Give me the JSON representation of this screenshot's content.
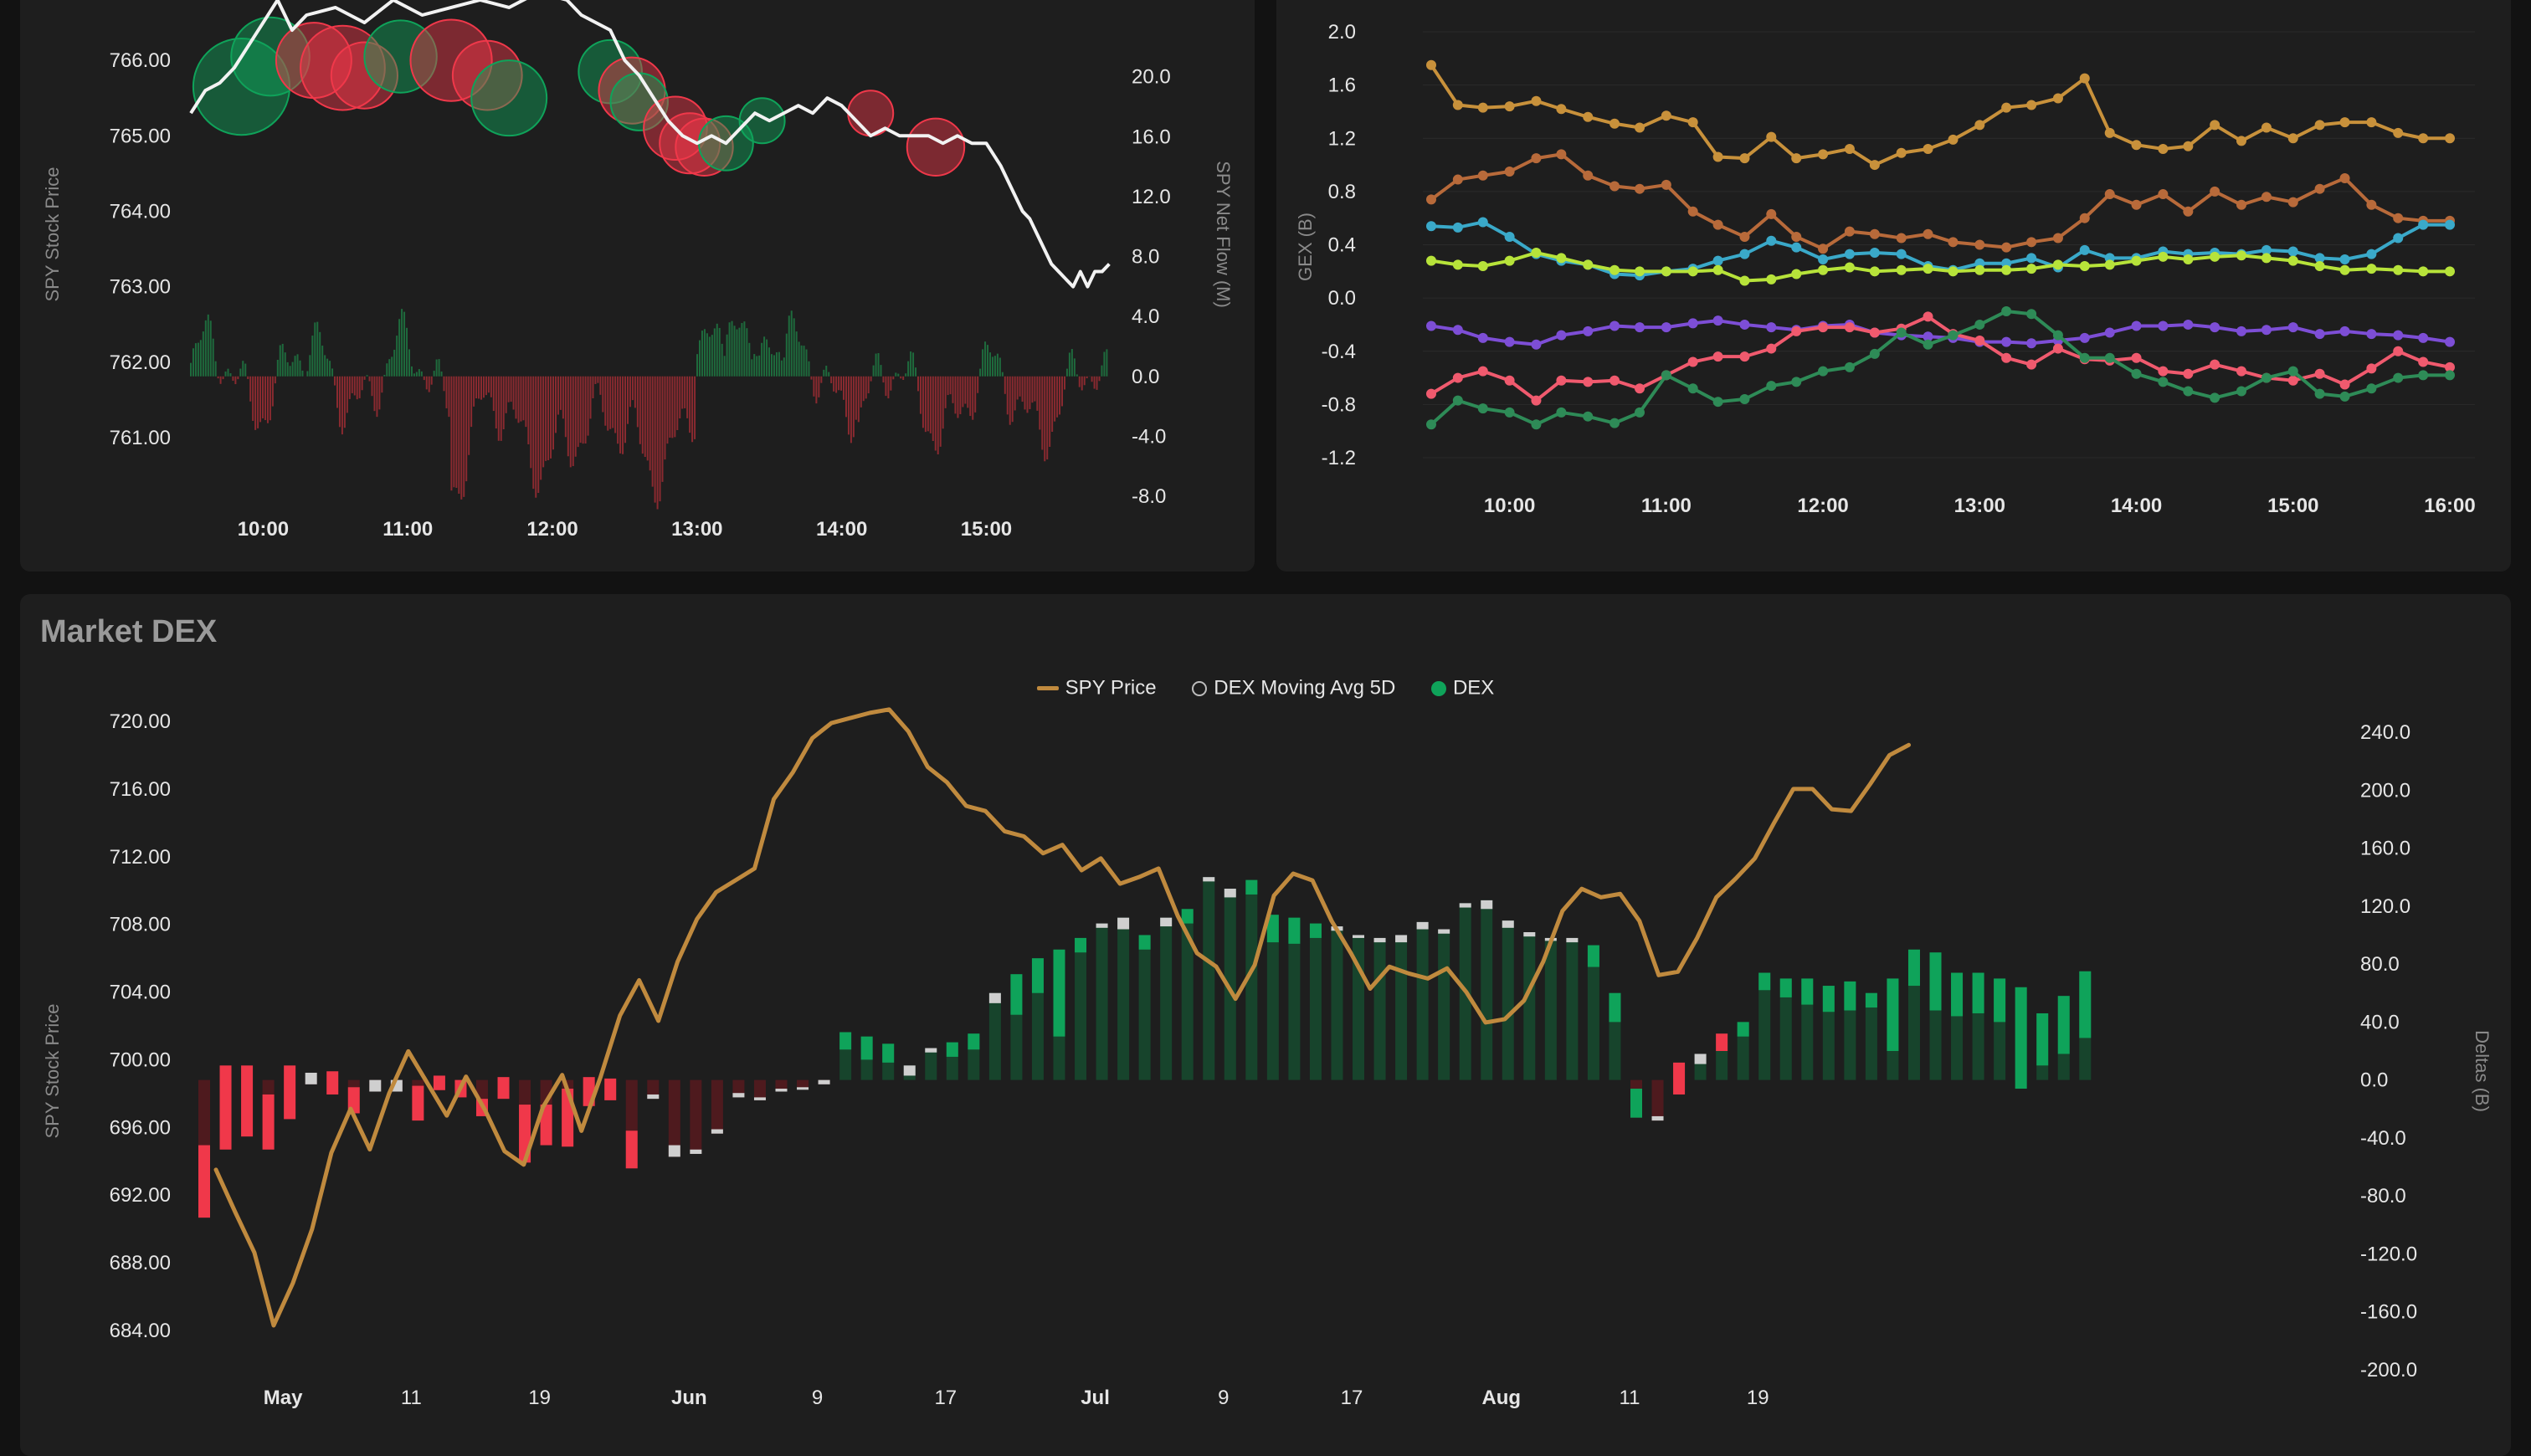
{
  "panels": {
    "dex_title": "Market DEX",
    "legend": {
      "price": "SPY Price",
      "avg": "DEX Moving Avg 5D",
      "dex": "DEX"
    }
  },
  "colors": {
    "bg": "#121212",
    "panel": "#1e1e1e",
    "grid": "#2b2b2b",
    "text": "#e6e6e6",
    "muted": "#8a8a8a",
    "green": "#0fa35a",
    "red": "#f0384a",
    "gray": "#cfcfcf",
    "dark_green": "#17442c",
    "dark_red": "#4e1a1e",
    "gold": "#c08a3e",
    "white_line": "#f2f2f2"
  },
  "chart_data": [
    {
      "type": "line",
      "id": "flow",
      "ylabel": "SPY Stock Price",
      "y2label": "SPY Net Flow (M)",
      "y_ticks": [
        "766.00",
        "765.00",
        "764.00",
        "763.00",
        "762.00",
        "761.00"
      ],
      "y2_ticks": [
        "20.0",
        "16.0",
        "12.0",
        "8.0",
        "4.0",
        "0.0",
        "-4.0",
        "-8.0"
      ],
      "x_ticks": [
        "10:00",
        "11:00",
        "12:00",
        "13:00",
        "14:00",
        "15:00"
      ],
      "ylim": [
        760.5,
        766.6
      ],
      "y2lim": [
        -8.0,
        23.0
      ],
      "price_series": {
        "x": [
          9.5,
          9.6,
          9.7,
          9.8,
          9.9,
          10.0,
          10.1,
          10.2,
          10.3,
          10.5,
          10.7,
          10.9,
          11.1,
          11.3,
          11.5,
          11.7,
          11.9,
          12.1,
          12.2,
          12.4,
          12.5,
          12.6,
          12.7,
          12.8,
          12.9,
          13.0,
          13.1,
          13.2,
          13.3,
          13.4,
          13.5,
          13.6,
          13.7,
          13.8,
          13.9,
          14.0,
          14.1,
          14.2,
          14.3,
          14.4,
          14.5,
          14.6,
          14.7,
          14.8,
          14.9,
          15.0,
          15.1,
          15.2,
          15.25,
          15.3,
          15.35,
          15.4,
          15.45,
          15.5,
          15.55,
          15.6,
          15.65,
          15.7,
          15.75,
          15.8,
          15.85
        ],
        "y": [
          765.3,
          765.6,
          765.7,
          765.9,
          766.2,
          766.5,
          766.8,
          766.4,
          766.6,
          766.7,
          766.5,
          766.8,
          766.6,
          766.7,
          766.8,
          766.7,
          766.9,
          766.8,
          766.6,
          766.4,
          766.0,
          765.8,
          765.5,
          765.2,
          765.0,
          764.9,
          765.0,
          764.9,
          765.1,
          765.3,
          765.2,
          765.3,
          765.4,
          765.3,
          765.5,
          765.4,
          765.2,
          765.0,
          765.1,
          765.0,
          765.0,
          765.0,
          764.9,
          765.0,
          764.9,
          764.9,
          764.6,
          764.2,
          764.0,
          763.9,
          763.7,
          763.5,
          763.3,
          763.2,
          763.1,
          763.0,
          763.2,
          763.0,
          763.2,
          763.2,
          763.3
        ]
      },
      "flow_bubbles": [
        {
          "x": 9.85,
          "y": 765.65,
          "r": 3.2,
          "c": "green"
        },
        {
          "x": 10.05,
          "y": 766.05,
          "r": 2.6,
          "c": "green"
        },
        {
          "x": 10.35,
          "y": 766.0,
          "r": 2.5,
          "c": "red"
        },
        {
          "x": 10.55,
          "y": 765.9,
          "r": 2.8,
          "c": "red"
        },
        {
          "x": 10.7,
          "y": 765.8,
          "r": 2.2,
          "c": "red"
        },
        {
          "x": 10.95,
          "y": 766.05,
          "r": 2.4,
          "c": "green"
        },
        {
          "x": 11.3,
          "y": 766.0,
          "r": 2.7,
          "c": "red"
        },
        {
          "x": 11.55,
          "y": 765.8,
          "r": 2.3,
          "c": "red"
        },
        {
          "x": 11.7,
          "y": 765.5,
          "r": 2.5,
          "c": "green"
        },
        {
          "x": 12.4,
          "y": 765.85,
          "r": 2.1,
          "c": "green"
        },
        {
          "x": 12.55,
          "y": 765.6,
          "r": 2.2,
          "c": "red"
        },
        {
          "x": 12.6,
          "y": 765.45,
          "r": 1.9,
          "c": "green"
        },
        {
          "x": 12.85,
          "y": 765.1,
          "r": 2.1,
          "c": "red"
        },
        {
          "x": 12.95,
          "y": 764.9,
          "r": 2.0,
          "c": "red"
        },
        {
          "x": 13.05,
          "y": 764.85,
          "r": 1.9,
          "c": "red"
        },
        {
          "x": 13.2,
          "y": 764.9,
          "r": 1.8,
          "c": "green"
        },
        {
          "x": 13.45,
          "y": 765.2,
          "r": 1.5,
          "c": "green"
        },
        {
          "x": 14.2,
          "y": 765.3,
          "r": 1.5,
          "c": "red"
        },
        {
          "x": 14.65,
          "y": 764.85,
          "r": 1.9,
          "c": "red"
        }
      ]
    },
    {
      "type": "line",
      "id": "gex",
      "ylabel": "GEX (B)",
      "y_ticks": [
        "2.0",
        "1.6",
        "1.2",
        "0.8",
        "0.4",
        "0.0",
        "-0.4",
        "-0.8",
        "-1.2"
      ],
      "x_ticks": [
        "10:00",
        "11:00",
        "12:00",
        "13:00",
        "14:00",
        "15:00",
        "16:00"
      ],
      "ylim": [
        -1.2,
        2.0
      ],
      "x": [
        9.5,
        9.67,
        9.83,
        10.0,
        10.17,
        10.33,
        10.5,
        10.67,
        10.83,
        11.0,
        11.17,
        11.33,
        11.5,
        11.67,
        11.83,
        12.0,
        12.17,
        12.33,
        12.5,
        12.67,
        12.83,
        13.0,
        13.17,
        13.33,
        13.5,
        13.67,
        13.83,
        14.0,
        14.17,
        14.33,
        14.5,
        14.67,
        14.83,
        15.0,
        15.17,
        15.33,
        15.5,
        15.67,
        15.83,
        16.0
      ],
      "series": [
        {
          "color": "#c8913b",
          "values": [
            1.75,
            1.45,
            1.43,
            1.44,
            1.48,
            1.42,
            1.36,
            1.31,
            1.28,
            1.37,
            1.32,
            1.06,
            1.05,
            1.21,
            1.05,
            1.08,
            1.12,
            1.0,
            1.09,
            1.12,
            1.19,
            1.3,
            1.43,
            1.45,
            1.5,
            1.65,
            1.24,
            1.15,
            1.12,
            1.14,
            1.3,
            1.18,
            1.28,
            1.2,
            1.3,
            1.32,
            1.32,
            1.24,
            1.2,
            1.2
          ]
        },
        {
          "color": "#b86a3a",
          "values": [
            0.74,
            0.89,
            0.92,
            0.95,
            1.05,
            1.08,
            0.92,
            0.84,
            0.82,
            0.85,
            0.65,
            0.55,
            0.46,
            0.63,
            0.46,
            0.37,
            0.5,
            0.48,
            0.45,
            0.48,
            0.42,
            0.4,
            0.38,
            0.42,
            0.45,
            0.6,
            0.78,
            0.7,
            0.78,
            0.65,
            0.8,
            0.7,
            0.76,
            0.72,
            0.82,
            0.9,
            0.7,
            0.6,
            0.58,
            0.58
          ]
        },
        {
          "color": "#3aa9c9",
          "values": [
            0.54,
            0.53,
            0.57,
            0.46,
            0.33,
            0.28,
            0.25,
            0.18,
            0.17,
            0.2,
            0.22,
            0.28,
            0.33,
            0.43,
            0.38,
            0.29,
            0.33,
            0.34,
            0.33,
            0.24,
            0.21,
            0.26,
            0.26,
            0.3,
            0.23,
            0.36,
            0.3,
            0.3,
            0.35,
            0.33,
            0.34,
            0.33,
            0.36,
            0.35,
            0.3,
            0.29,
            0.33,
            0.45,
            0.55,
            0.55
          ]
        },
        {
          "color": "#b7e33a",
          "values": [
            0.28,
            0.25,
            0.24,
            0.28,
            0.34,
            0.3,
            0.25,
            0.21,
            0.2,
            0.2,
            0.2,
            0.21,
            0.13,
            0.14,
            0.18,
            0.21,
            0.23,
            0.2,
            0.21,
            0.22,
            0.2,
            0.21,
            0.21,
            0.22,
            0.25,
            0.24,
            0.25,
            0.28,
            0.31,
            0.29,
            0.31,
            0.32,
            0.3,
            0.28,
            0.24,
            0.21,
            0.22,
            0.21,
            0.2,
            0.2
          ]
        },
        {
          "color": "#7d4ed6",
          "values": [
            -0.21,
            -0.24,
            -0.3,
            -0.33,
            -0.35,
            -0.28,
            -0.25,
            -0.21,
            -0.22,
            -0.22,
            -0.19,
            -0.17,
            -0.2,
            -0.22,
            -0.24,
            -0.21,
            -0.2,
            -0.26,
            -0.28,
            -0.29,
            -0.3,
            -0.33,
            -0.33,
            -0.34,
            -0.32,
            -0.3,
            -0.26,
            -0.21,
            -0.21,
            -0.2,
            -0.22,
            -0.25,
            -0.24,
            -0.22,
            -0.27,
            -0.25,
            -0.27,
            -0.28,
            -0.3,
            -0.33
          ]
        },
        {
          "color": "#f05a6e",
          "values": [
            -0.72,
            -0.6,
            -0.55,
            -0.62,
            -0.77,
            -0.62,
            -0.63,
            -0.62,
            -0.68,
            -0.58,
            -0.48,
            -0.44,
            -0.44,
            -0.38,
            -0.25,
            -0.22,
            -0.22,
            -0.26,
            -0.23,
            -0.14,
            -0.27,
            -0.32,
            -0.45,
            -0.5,
            -0.38,
            -0.46,
            -0.47,
            -0.45,
            -0.55,
            -0.57,
            -0.5,
            -0.55,
            -0.6,
            -0.62,
            -0.57,
            -0.65,
            -0.53,
            -0.4,
            -0.48,
            -0.52
          ]
        },
        {
          "color": "#2e8b57",
          "values": [
            -0.95,
            -0.77,
            -0.83,
            -0.86,
            -0.95,
            -0.86,
            -0.89,
            -0.94,
            -0.86,
            -0.58,
            -0.68,
            -0.78,
            -0.76,
            -0.66,
            -0.63,
            -0.55,
            -0.52,
            -0.42,
            -0.26,
            -0.35,
            -0.28,
            -0.2,
            -0.1,
            -0.12,
            -0.28,
            -0.45,
            -0.45,
            -0.57,
            -0.63,
            -0.7,
            -0.75,
            -0.7,
            -0.6,
            -0.55,
            -0.72,
            -0.74,
            -0.68,
            -0.6,
            -0.58,
            -0.58
          ]
        }
      ]
    },
    {
      "type": "bar",
      "id": "dex",
      "ylabel": "SPY Stock Price",
      "y2label": "Deltas (B)",
      "y_ticks": [
        "720.00",
        "716.00",
        "712.00",
        "708.00",
        "704.00",
        "700.00",
        "696.00",
        "692.00",
        "688.00",
        "684.00"
      ],
      "y2_ticks": [
        "240.0",
        "200.0",
        "160.0",
        "120.0",
        "80.0",
        "40.0",
        "0.0",
        "-40.0",
        "-80.0",
        "-120.0",
        "-160.0",
        "-200.0"
      ],
      "x_ticks": [
        {
          "label": "May",
          "bold": true
        },
        {
          "label": "11"
        },
        {
          "label": "19"
        },
        {
          "label": "Jun",
          "bold": true
        },
        {
          "label": "9"
        },
        {
          "label": "17"
        },
        {
          "label": "Jul",
          "bold": true
        },
        {
          "label": "9"
        },
        {
          "label": "17"
        },
        {
          "label": "Aug",
          "bold": true
        },
        {
          "label": "11"
        },
        {
          "label": "19"
        }
      ],
      "ylim": [
        682.0,
        720.5
      ],
      "y2lim": [
        -200.0,
        240.0
      ],
      "price": [
        693.5,
        691.0,
        688.6,
        684.3,
        686.8,
        690.0,
        694.5,
        697.1,
        694.7,
        698.0,
        700.5,
        698.6,
        696.7,
        699.0,
        697.0,
        694.6,
        693.8,
        697.2,
        699.1,
        695.8,
        699.0,
        702.6,
        704.7,
        702.3,
        705.8,
        708.3,
        709.9,
        710.6,
        711.3,
        715.4,
        717.0,
        719.0,
        719.9,
        720.2,
        720.5,
        720.7,
        719.4,
        717.3,
        716.4,
        715.0,
        714.7,
        713.5,
        713.2,
        712.2,
        712.7,
        711.2,
        711.9,
        710.4,
        710.8,
        711.3,
        708.5,
        706.3,
        705.5,
        703.6,
        705.6,
        709.7,
        711.0,
        710.6,
        708.2,
        706.3,
        704.2,
        705.5,
        705.1,
        704.8,
        705.4,
        704.0,
        702.2,
        702.4,
        703.5,
        705.8,
        708.8,
        710.1,
        709.6,
        709.8,
        708.2,
        705.0,
        705.2,
        707.2,
        709.6,
        710.7,
        711.9,
        714.0,
        716.0,
        716.0,
        714.8,
        714.7,
        716.3,
        718.0,
        718.6
      ],
      "dex": [
        -95,
        -48,
        -39,
        -48,
        -27,
        -3,
        -10,
        -23,
        -8,
        -8,
        -28,
        -7,
        -12,
        -25,
        -13,
        -57,
        -45,
        -46,
        -18,
        -14,
        -61,
        -13,
        -53,
        -51,
        -37,
        -12,
        -14,
        -8,
        -6,
        -3,
        33,
        30,
        25,
        10,
        22,
        26,
        32,
        60,
        73,
        84,
        90,
        98,
        108,
        112,
        100,
        112,
        118,
        140,
        132,
        138,
        114,
        112,
        108,
        106,
        100,
        98,
        100,
        109,
        104,
        122,
        124,
        110,
        102,
        98,
        98,
        93,
        60,
        -26,
        -28,
        12,
        18,
        32,
        40,
        74,
        70,
        70,
        65,
        68,
        60,
        70,
        90,
        88,
        74,
        74,
        70,
        64,
        46,
        58,
        75
      ],
      "avg": [
        -50,
        -60,
        -62,
        -38,
        -40,
        -8,
        -16,
        -18,
        -8,
        -8,
        -24,
        -10,
        -12,
        -12,
        -15,
        -40,
        -28,
        -40,
        -20,
        -15,
        -26,
        -3,
        -8,
        -3,
        -3,
        0,
        -2,
        -2,
        -1,
        0,
        12,
        16,
        13,
        7,
        0,
        10,
        11,
        7,
        28,
        24,
        60,
        10,
        0,
        8,
        10,
        6,
        10,
        0,
        6,
        10,
        19,
        18,
        10,
        3,
        2,
        0,
        5,
        5,
        3,
        3,
        6,
        5,
        0,
        2,
        0,
        15,
        20,
        20,
        0,
        -25,
        -7,
        -12,
        10,
        12,
        13,
        18,
        18,
        20,
        10,
        50,
        25,
        40,
        30,
        28,
        30,
        70,
        36,
        40,
        46
      ]
    }
  ]
}
